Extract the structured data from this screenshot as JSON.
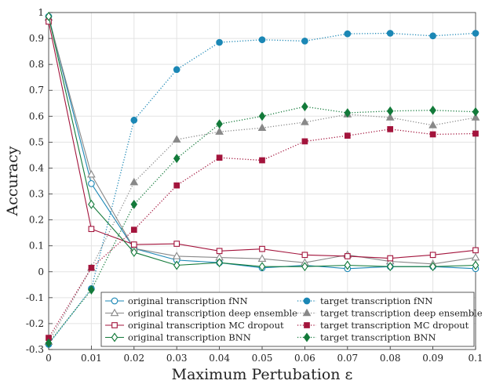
{
  "chart_data": {
    "type": "line",
    "xlabel": "Maximum Pertubation ε",
    "ylabel": "Accuracy",
    "xlim": [
      0,
      0.1
    ],
    "ylim": [
      -0.3,
      1
    ],
    "x": [
      0,
      0.01,
      0.02,
      0.03,
      0.04,
      0.05,
      0.06,
      0.07,
      0.08,
      0.09,
      0.1
    ],
    "xticks": [
      "0",
      "0.01",
      "0.02",
      "0.03",
      "0.04",
      "0.05",
      "0.06",
      "0.07",
      "0.08",
      "0.09",
      "0.1"
    ],
    "yticks": [
      "-0.3",
      "-0.2",
      "-0.1",
      "0",
      "0.1",
      "0.2",
      "0.3",
      "0.4",
      "0.5",
      "0.6",
      "0.7",
      "0.8",
      "0.9",
      "1"
    ],
    "grid": true,
    "legend_position": "bottom-right",
    "series": [
      {
        "name": "original transcription fNN",
        "color": "#1b87b5",
        "style": "solid",
        "marker": "circle",
        "filled": false,
        "values": [
          0.985,
          0.34,
          0.09,
          0.045,
          0.035,
          0.015,
          0.025,
          0.012,
          0.02,
          0.02,
          0.012
        ]
      },
      {
        "name": "original transcription deep ensemble",
        "color": "#888888",
        "style": "solid",
        "marker": "triangle",
        "filled": false,
        "values": [
          0.98,
          0.375,
          0.09,
          0.06,
          0.055,
          0.05,
          0.035,
          0.065,
          0.04,
          0.03,
          0.055
        ]
      },
      {
        "name": "original transcription MC dropout",
        "color": "#a3143c",
        "style": "solid",
        "marker": "square",
        "filled": false,
        "values": [
          0.965,
          0.165,
          0.105,
          0.108,
          0.08,
          0.088,
          0.065,
          0.06,
          0.052,
          0.065,
          0.083
        ]
      },
      {
        "name": "original transcription BNN",
        "color": "#137a3a",
        "style": "solid",
        "marker": "diamond",
        "filled": false,
        "values": [
          0.985,
          0.26,
          0.075,
          0.025,
          0.035,
          0.02,
          0.02,
          0.025,
          0.02,
          0.02,
          0.025
        ]
      },
      {
        "name": "target transcription fNN",
        "color": "#1b87b5",
        "style": "dotted",
        "marker": "circle",
        "filled": true,
        "values": [
          -0.28,
          -0.065,
          0.585,
          0.78,
          0.885,
          0.895,
          0.89,
          0.918,
          0.92,
          0.91,
          0.92
        ]
      },
      {
        "name": "target transcription deep ensemble",
        "color": "#888888",
        "style": "dotted",
        "marker": "triangle",
        "filled": true,
        "values": [
          -0.27,
          0.015,
          0.345,
          0.51,
          0.54,
          0.555,
          0.577,
          0.607,
          0.595,
          0.565,
          0.595
        ]
      },
      {
        "name": "target transcription MC dropout",
        "color": "#a3143c",
        "style": "dotted",
        "marker": "square",
        "filled": true,
        "values": [
          -0.255,
          0.015,
          0.162,
          0.333,
          0.44,
          0.43,
          0.503,
          0.525,
          0.55,
          0.53,
          0.533
        ]
      },
      {
        "name": "target transcription BNN",
        "color": "#137a3a",
        "style": "dotted",
        "marker": "diamond",
        "filled": true,
        "values": [
          -0.275,
          -0.07,
          0.26,
          0.437,
          0.57,
          0.6,
          0.637,
          0.613,
          0.62,
          0.623,
          0.617
        ]
      }
    ]
  }
}
